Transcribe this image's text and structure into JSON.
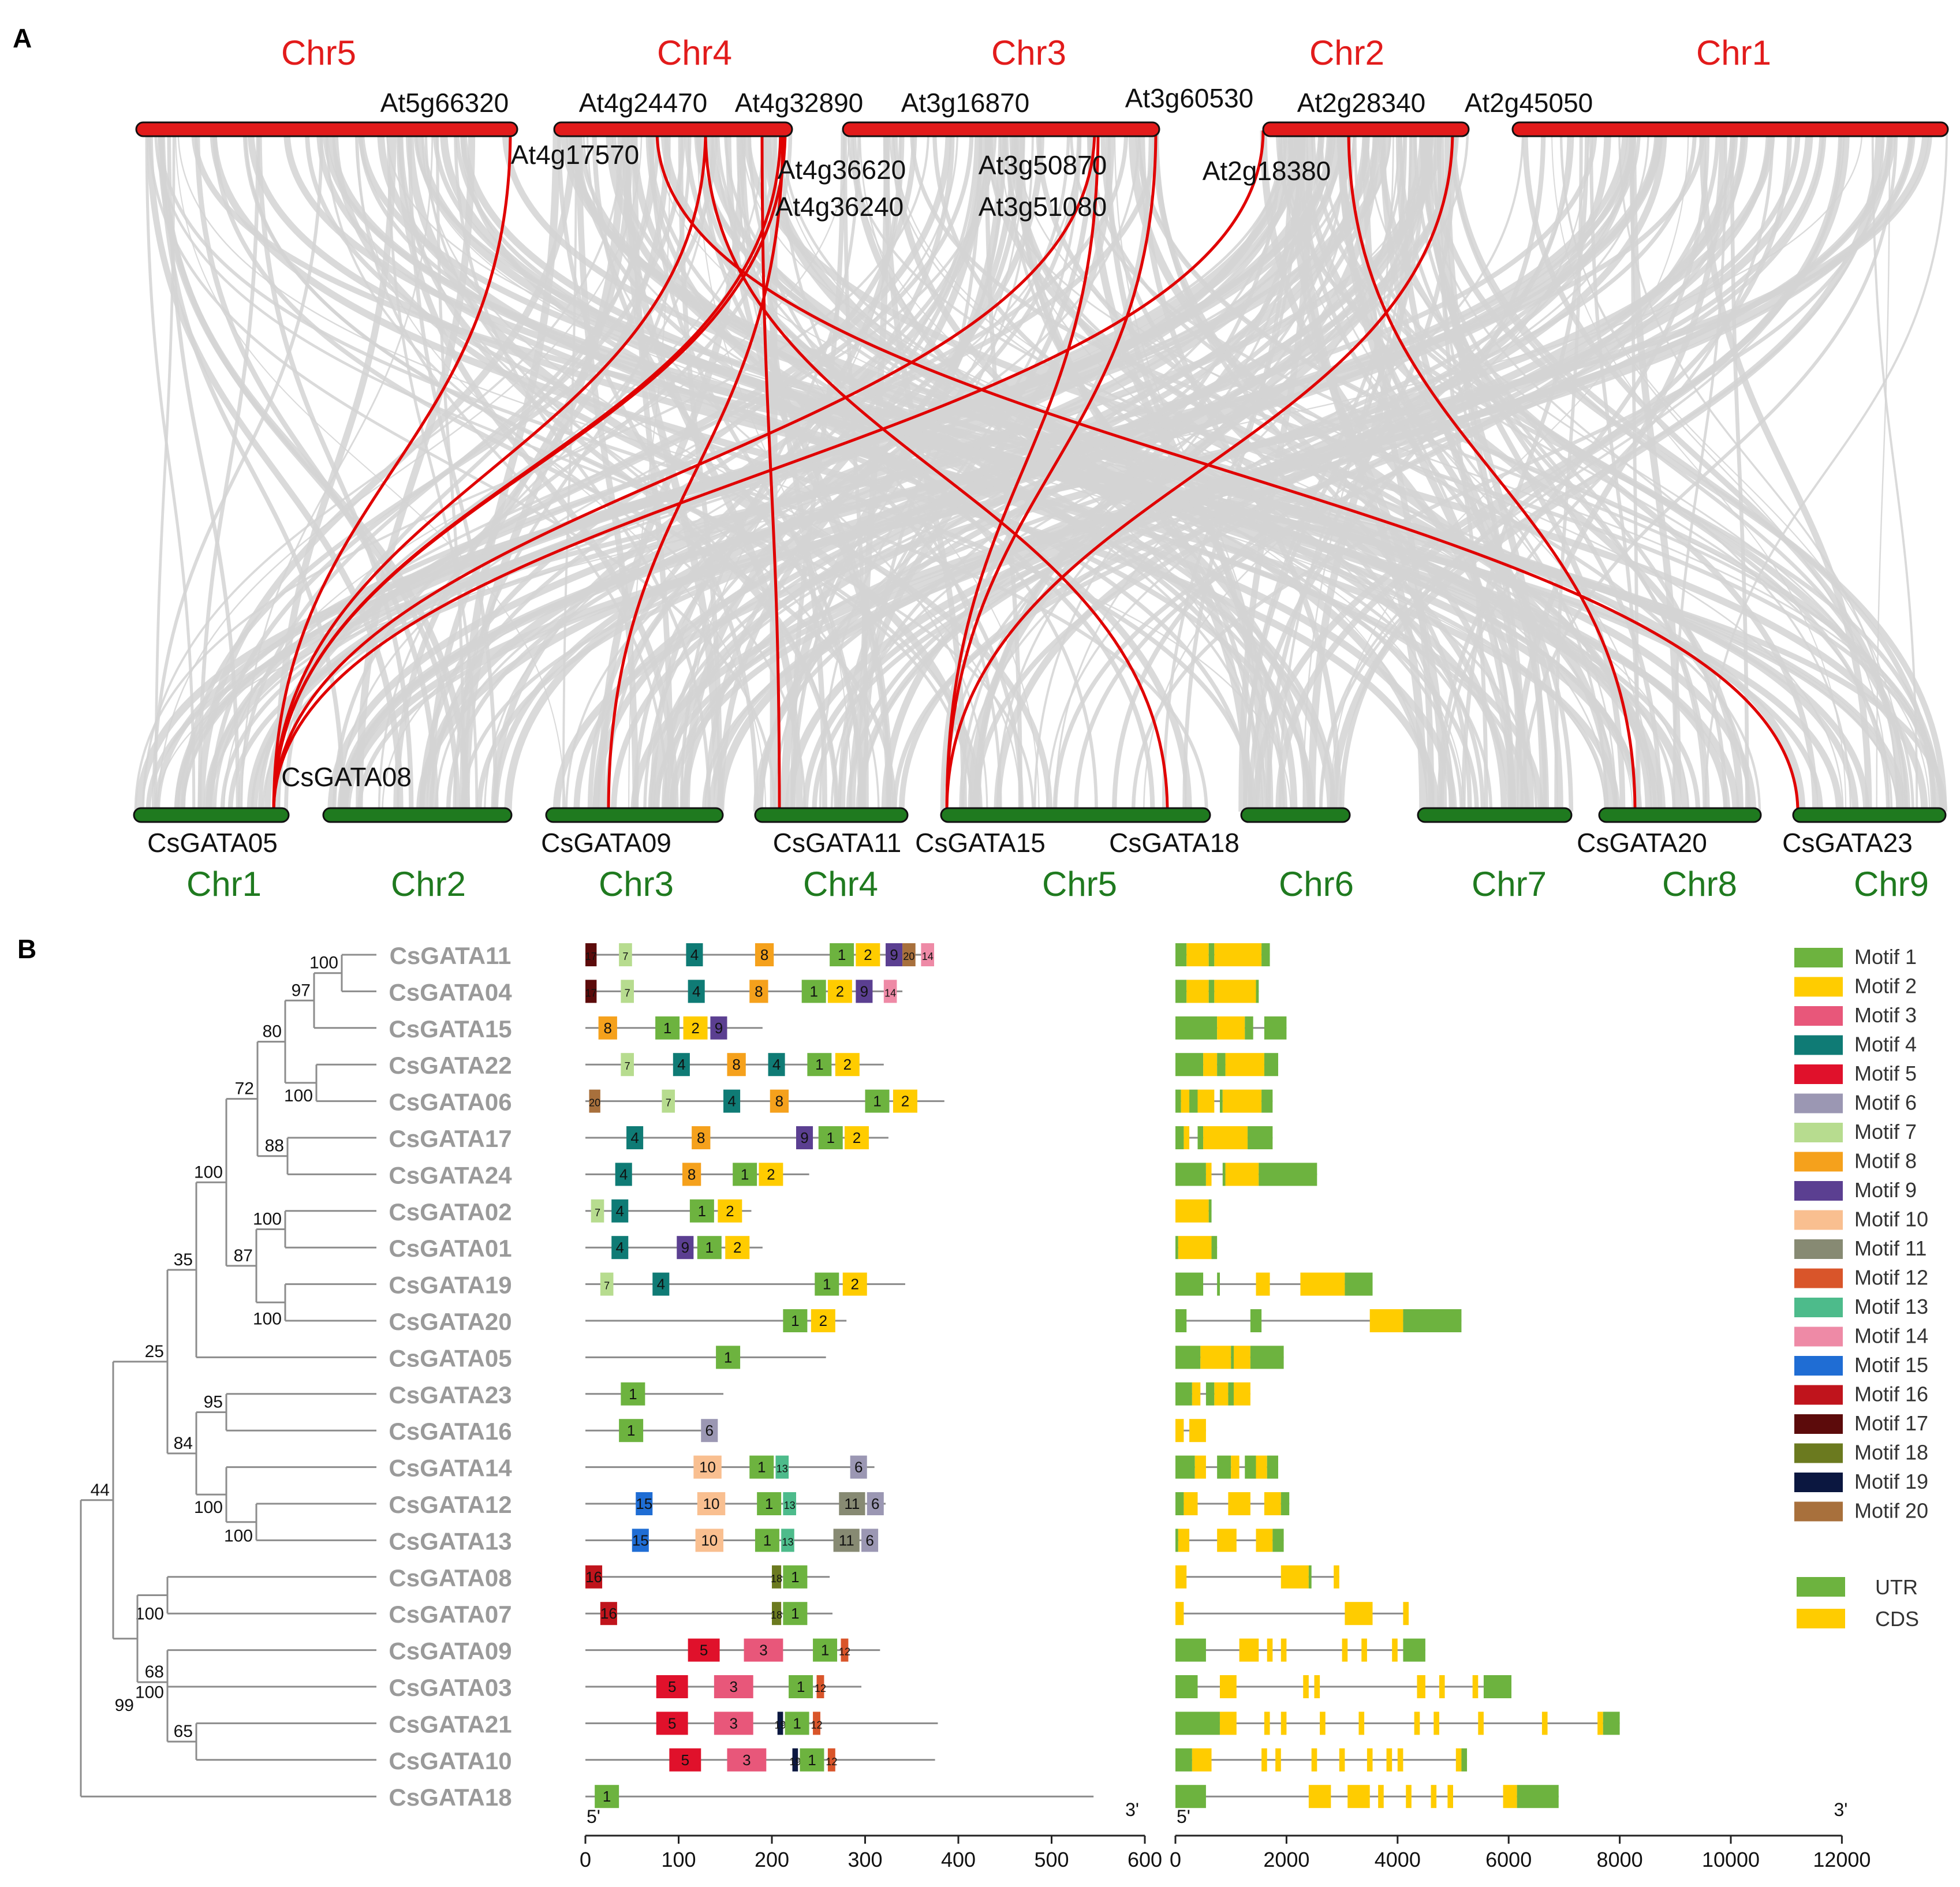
{
  "panel_a": {
    "label": "A",
    "arabidopsis_chromosomes": [
      "Chr5",
      "Chr4",
      "Chr3",
      "Chr2",
      "Chr1"
    ],
    "cucumber_chromosomes": [
      "Chr1",
      "Chr2",
      "Chr3",
      "Chr4",
      "Chr5",
      "Chr6",
      "Chr7",
      "Chr8",
      "Chr9"
    ],
    "arabidopsis_genes": [
      "At5g66320",
      "At4g24470",
      "At4g32890",
      "At3g16870",
      "At3g60530",
      "At2g28340",
      "At2g45050",
      "At4g17570",
      "At4g36620",
      "At4g36240",
      "At3g50870",
      "At3g51080",
      "At2g18380"
    ],
    "cucumber_genes": [
      "CsGATA08",
      "CsGATA05",
      "CsGATA09",
      "CsGATA11",
      "CsGATA15",
      "CsGATA18",
      "CsGATA20",
      "CsGATA23"
    ],
    "colors": {
      "arabidopsis": "#e21b1b",
      "cucumber": "#1f7a1f",
      "syntenic": "#d3d3d3",
      "orthologous": "#e00000"
    },
    "orthologous_links": [
      [
        "At5g66320",
        "CsGATA05"
      ],
      [
        "At4g17570",
        "CsGATA05"
      ],
      [
        "At4g36620",
        "CsGATA05"
      ],
      [
        "At4g36240",
        "CsGATA05"
      ],
      [
        "At3g50870",
        "CsGATA05"
      ],
      [
        "At2g18380",
        "CsGATA05"
      ],
      [
        "At4g24470",
        "CsGATA09"
      ],
      [
        "At4g32890",
        "CsGATA11"
      ],
      [
        "At4g17570",
        "CsGATA18"
      ],
      [
        "At3g51080",
        "CsGATA15"
      ],
      [
        "At3g60530",
        "CsGATA15"
      ],
      [
        "At2g45050",
        "CsGATA15"
      ],
      [
        "At2g28340",
        "CsGATA20"
      ],
      [
        "At3g16870",
        "CsGATA23"
      ]
    ]
  },
  "panel_b": {
    "label": "B",
    "genes": [
      "CsGATA11",
      "CsGATA04",
      "CsGATA15",
      "CsGATA22",
      "CsGATA06",
      "CsGATA17",
      "CsGATA24",
      "CsGATA02",
      "CsGATA01",
      "CsGATA19",
      "CsGATA20",
      "CsGATA05",
      "CsGATA23",
      "CsGATA16",
      "CsGATA14",
      "CsGATA12",
      "CsGATA13",
      "CsGATA08",
      "CsGATA07",
      "CsGATA09",
      "CsGATA03",
      "CsGATA21",
      "CsGATA10",
      "CsGATA18"
    ],
    "bootstrap_values": [
      "100",
      "97",
      "80",
      "72",
      "100",
      "88",
      "100",
      "100",
      "87",
      "100",
      "35",
      "25",
      "95",
      "84",
      "100",
      "100",
      "44",
      "68",
      "100",
      "100",
      "65",
      "99"
    ],
    "motif_legend": [
      {
        "label": "Motif 1",
        "color": "#6db33f"
      },
      {
        "label": "Motif 2",
        "color": "#ffcc00"
      },
      {
        "label": "Motif 3",
        "color": "#e8577a"
      },
      {
        "label": "Motif 4",
        "color": "#0f7b75"
      },
      {
        "label": "Motif 5",
        "color": "#e0112b"
      },
      {
        "label": "Motif 6",
        "color": "#9b97b3"
      },
      {
        "label": "Motif 7",
        "color": "#b7dc8f"
      },
      {
        "label": "Motif 8",
        "color": "#f5a11c"
      },
      {
        "label": "Motif 9",
        "color": "#5b3f91"
      },
      {
        "label": "Motif 10",
        "color": "#f9bf90"
      },
      {
        "label": "Motif 11",
        "color": "#878a73"
      },
      {
        "label": "Motif 12",
        "color": "#d9552a"
      },
      {
        "label": "Motif 13",
        "color": "#4dbb8b"
      },
      {
        "label": "Motif 14",
        "color": "#ee8aa6"
      },
      {
        "label": "Motif 15",
        "color": "#1f6dd4"
      },
      {
        "label": "Motif 16",
        "color": "#c0141c"
      },
      {
        "label": "Motif 17",
        "color": "#5c0b0b"
      },
      {
        "label": "Motif 18",
        "color": "#6b7a1f"
      },
      {
        "label": "Motif 19",
        "color": "#0b1740"
      },
      {
        "label": "Motif 20",
        "color": "#a8703c"
      }
    ],
    "structure_legend": [
      {
        "label": "UTR",
        "color": "#6db33f"
      },
      {
        "label": "CDS",
        "color": "#ffcc00"
      }
    ],
    "motif_axis": {
      "ticks": [
        "0",
        "100",
        "200",
        "300",
        "400",
        "500",
        "600"
      ],
      "five_prime": "5'",
      "three_prime": "3'"
    },
    "gene_axis": {
      "ticks": [
        "0",
        "2000",
        "4000",
        "6000",
        "8000",
        "10000",
        "12000"
      ],
      "five_prime": "5'",
      "three_prime": "3'"
    }
  }
}
